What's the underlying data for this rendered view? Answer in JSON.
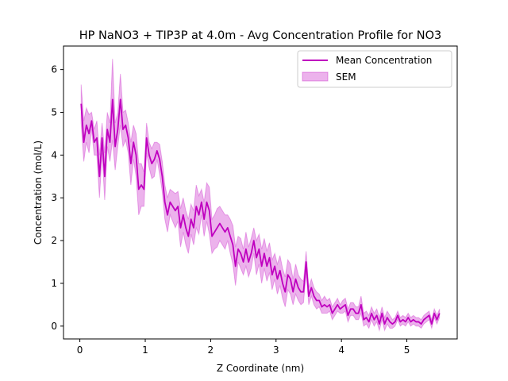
{
  "chart_data": {
    "type": "line",
    "title": "HP NaNO3 + TIP3P at 4.0m - Avg Concentration Profile for NO3",
    "xlabel": "Z Coordinate (nm)",
    "ylabel": "Concentration (mol/L)",
    "xlim": [
      -0.25,
      5.77
    ],
    "ylim": [
      -0.3,
      6.55
    ],
    "xticks": [
      0,
      1,
      2,
      3,
      4,
      5
    ],
    "yticks": [
      0,
      1,
      2,
      3,
      4,
      5,
      6
    ],
    "legend_position": "top-right",
    "series": [
      {
        "name": "Mean Concentration",
        "color": "#bf00bf",
        "x": [
          0.02,
          0.06,
          0.1,
          0.14,
          0.18,
          0.22,
          0.26,
          0.3,
          0.34,
          0.38,
          0.42,
          0.46,
          0.5,
          0.54,
          0.58,
          0.62,
          0.66,
          0.7,
          0.74,
          0.78,
          0.82,
          0.86,
          0.9,
          0.94,
          0.98,
          1.02,
          1.06,
          1.1,
          1.14,
          1.18,
          1.22,
          1.26,
          1.3,
          1.34,
          1.38,
          1.42,
          1.46,
          1.5,
          1.54,
          1.58,
          1.62,
          1.66,
          1.7,
          1.74,
          1.78,
          1.82,
          1.86,
          1.9,
          1.94,
          1.98,
          2.02,
          2.06,
          2.1,
          2.14,
          2.18,
          2.22,
          2.26,
          2.3,
          2.34,
          2.38,
          2.42,
          2.46,
          2.5,
          2.54,
          2.58,
          2.62,
          2.66,
          2.7,
          2.74,
          2.78,
          2.82,
          2.86,
          2.9,
          2.94,
          2.98,
          3.02,
          3.06,
          3.1,
          3.14,
          3.18,
          3.22,
          3.26,
          3.3,
          3.34,
          3.38,
          3.42,
          3.46,
          3.5,
          3.54,
          3.58,
          3.62,
          3.66,
          3.7,
          3.74,
          3.78,
          3.82,
          3.86,
          3.9,
          3.94,
          3.98,
          4.02,
          4.06,
          4.1,
          4.14,
          4.18,
          4.22,
          4.26,
          4.3,
          4.34,
          4.38,
          4.42,
          4.46,
          4.5,
          4.54,
          4.58,
          4.62,
          4.66,
          4.7,
          4.74,
          4.78,
          4.82,
          4.86,
          4.9,
          4.94,
          4.98,
          5.02,
          5.06,
          5.1,
          5.14,
          5.18,
          5.22,
          5.26,
          5.3,
          5.34,
          5.38,
          5.42,
          5.46,
          5.5
        ],
        "values": [
          5.2,
          4.3,
          4.7,
          4.5,
          4.8,
          4.3,
          4.4,
          3.5,
          4.4,
          3.5,
          4.6,
          4.3,
          5.3,
          4.2,
          4.6,
          5.3,
          4.6,
          4.7,
          4.4,
          3.8,
          4.3,
          4.0,
          3.2,
          3.3,
          3.2,
          4.4,
          4.0,
          3.8,
          3.9,
          4.1,
          3.9,
          3.5,
          2.9,
          2.6,
          2.9,
          2.8,
          2.7,
          2.8,
          2.3,
          2.6,
          2.3,
          2.1,
          2.5,
          2.3,
          2.8,
          2.6,
          2.9,
          2.5,
          2.9,
          2.7,
          2.1,
          2.2,
          2.3,
          2.4,
          2.3,
          2.2,
          2.3,
          2.1,
          1.9,
          1.4,
          1.8,
          1.7,
          1.5,
          1.8,
          1.5,
          1.7,
          2.0,
          1.6,
          1.8,
          1.4,
          1.7,
          1.4,
          1.6,
          1.2,
          1.4,
          1.1,
          1.3,
          1.0,
          0.8,
          1.2,
          1.1,
          0.8,
          1.1,
          0.9,
          0.8,
          0.8,
          1.5,
          0.7,
          0.9,
          0.7,
          0.6,
          0.6,
          0.45,
          0.5,
          0.45,
          0.5,
          0.3,
          0.4,
          0.5,
          0.4,
          0.45,
          0.5,
          0.25,
          0.4,
          0.4,
          0.3,
          0.3,
          0.5,
          0.15,
          0.2,
          0.1,
          0.3,
          0.15,
          0.25,
          0.05,
          0.3,
          0.05,
          0.2,
          0.1,
          0.05,
          0.1,
          0.25,
          0.1,
          0.15,
          0.1,
          0.2,
          0.1,
          0.15,
          0.1,
          0.1,
          0.05,
          0.15,
          0.2,
          0.25,
          0.05,
          0.3,
          0.15,
          0.3
        ]
      },
      {
        "name": "SEM",
        "color": "#bf00bf",
        "kind": "band",
        "upper": [
          5.65,
          4.8,
          5.1,
          4.95,
          5.0,
          4.6,
          4.8,
          4.0,
          4.75,
          4.05,
          5.0,
          4.75,
          6.25,
          4.75,
          5.0,
          5.9,
          5.0,
          5.05,
          4.75,
          4.3,
          4.7,
          4.5,
          3.8,
          3.8,
          3.6,
          4.75,
          4.3,
          4.15,
          4.3,
          4.3,
          4.25,
          3.85,
          3.3,
          3.0,
          3.2,
          3.15,
          3.1,
          3.15,
          2.75,
          3.0,
          2.7,
          2.5,
          2.85,
          2.7,
          3.3,
          3.05,
          3.2,
          2.9,
          3.35,
          3.25,
          2.5,
          2.6,
          2.75,
          2.8,
          2.7,
          2.6,
          2.6,
          2.5,
          2.35,
          1.85,
          2.1,
          2.05,
          1.8,
          2.2,
          1.85,
          2.05,
          2.3,
          2.0,
          2.15,
          1.8,
          2.05,
          1.75,
          1.95,
          1.55,
          1.7,
          1.45,
          1.65,
          1.35,
          1.15,
          1.55,
          1.45,
          1.1,
          1.45,
          1.2,
          1.1,
          1.05,
          1.75,
          0.9,
          1.1,
          0.9,
          0.8,
          0.75,
          0.6,
          0.7,
          0.6,
          0.65,
          0.45,
          0.55,
          0.65,
          0.5,
          0.6,
          0.65,
          0.4,
          0.55,
          0.55,
          0.45,
          0.45,
          0.7,
          0.3,
          0.35,
          0.25,
          0.45,
          0.3,
          0.4,
          0.2,
          0.45,
          0.2,
          0.35,
          0.25,
          0.15,
          0.2,
          0.35,
          0.2,
          0.25,
          0.2,
          0.3,
          0.2,
          0.25,
          0.2,
          0.2,
          0.15,
          0.25,
          0.3,
          0.35,
          0.15,
          0.4,
          0.25,
          0.4
        ],
        "lower": [
          4.75,
          3.85,
          4.3,
          4.05,
          4.6,
          4.0,
          4.0,
          3.0,
          4.05,
          2.95,
          4.2,
          3.85,
          4.35,
          3.65,
          4.2,
          4.7,
          4.2,
          4.35,
          4.05,
          3.3,
          3.9,
          3.5,
          2.6,
          2.8,
          2.8,
          4.05,
          3.7,
          3.45,
          3.5,
          3.9,
          3.55,
          3.15,
          2.5,
          2.2,
          2.6,
          2.45,
          2.3,
          2.45,
          1.85,
          2.2,
          1.9,
          1.7,
          2.15,
          1.9,
          2.3,
          2.15,
          2.6,
          2.1,
          2.45,
          2.15,
          1.7,
          1.8,
          1.85,
          2.0,
          1.9,
          1.8,
          2.0,
          1.7,
          1.45,
          0.95,
          1.5,
          1.35,
          1.2,
          1.4,
          1.15,
          1.35,
          1.7,
          1.2,
          1.45,
          1.0,
          1.35,
          1.05,
          1.25,
          0.85,
          1.1,
          0.75,
          0.95,
          0.65,
          0.45,
          0.85,
          0.75,
          0.5,
          0.75,
          0.6,
          0.5,
          0.55,
          1.25,
          0.5,
          0.7,
          0.5,
          0.4,
          0.45,
          0.3,
          0.3,
          0.3,
          0.35,
          0.15,
          0.25,
          0.35,
          0.3,
          0.3,
          0.35,
          0.1,
          0.25,
          0.25,
          0.15,
          0.15,
          0.3,
          0.0,
          0.05,
          -0.05,
          0.15,
          0.0,
          0.1,
          -0.1,
          0.15,
          -0.1,
          0.05,
          -0.05,
          -0.05,
          0.0,
          0.15,
          0.0,
          0.05,
          0.0,
          0.1,
          0.0,
          0.05,
          0.0,
          0.0,
          -0.05,
          0.05,
          0.1,
          0.15,
          -0.05,
          0.2,
          0.05,
          0.2
        ]
      }
    ]
  }
}
